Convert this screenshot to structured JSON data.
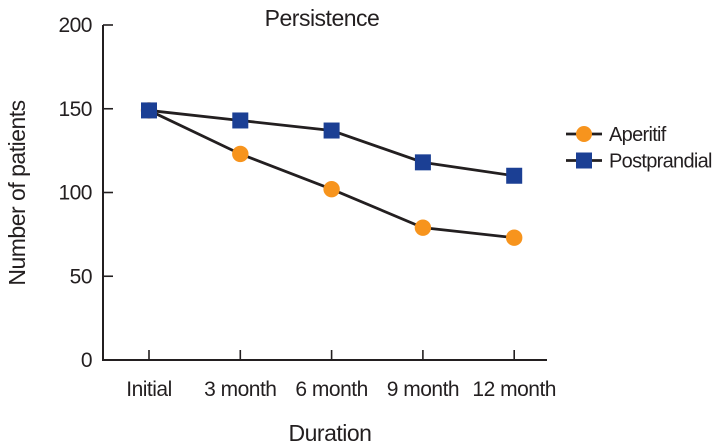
{
  "chart_data": {
    "type": "line",
    "title": "Persistence",
    "xlabel": "Duration",
    "ylabel": "Number of patients",
    "categories": [
      "Initial",
      "3 month",
      "6 month",
      "9 month",
      "12 month"
    ],
    "series": [
      {
        "name": "Aperitif",
        "marker": "circle",
        "color": "#F7941D",
        "values": [
          149,
          123,
          102,
          79,
          73
        ]
      },
      {
        "name": "Postprandial",
        "marker": "square",
        "color": "#1B3F94",
        "values": [
          149,
          143,
          137,
          118,
          110
        ]
      }
    ],
    "ylim": [
      0,
      200
    ],
    "yticks": [
      0,
      50,
      100,
      150,
      200
    ],
    "grid": false,
    "legend_position": "right",
    "line_color": "#231F20",
    "text_color": "#231F20",
    "background": "#FFFFFF"
  }
}
